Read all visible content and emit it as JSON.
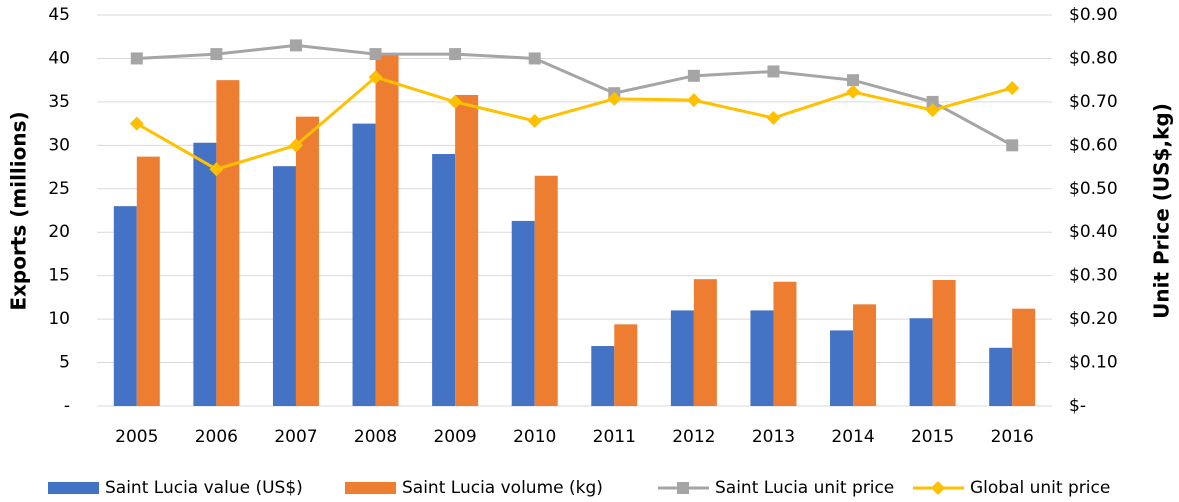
{
  "chart_data": {
    "type": "bar",
    "categories": [
      "2005",
      "2006",
      "2007",
      "2008",
      "2009",
      "2010",
      "2011",
      "2012",
      "2013",
      "2014",
      "2015",
      "2016"
    ],
    "series": [
      {
        "name": "Saint Lucia value (US$)",
        "color": "#4472c4",
        "type": "bar",
        "values": [
          23,
          30.3,
          27.6,
          32.5,
          29,
          21.3,
          6.9,
          11,
          11,
          8.7,
          10.1,
          6.7
        ]
      },
      {
        "name": "Saint Lucia volume (kg)",
        "color": "#ed7d31",
        "type": "bar",
        "values": [
          28.7,
          37.5,
          33.3,
          40.4,
          35.8,
          26.5,
          9.4,
          14.6,
          14.3,
          11.7,
          14.5,
          11.2
        ]
      },
      {
        "name": "Saint Lucia unit price",
        "color": "#a5a5a5",
        "type": "line",
        "marker": "square",
        "axis": "y2",
        "values": [
          0.8,
          0.81,
          0.83,
          0.81,
          0.81,
          0.8,
          0.72,
          0.76,
          0.77,
          0.75,
          0.7,
          0.6
        ]
      },
      {
        "name": "Global unit price",
        "color": "#ffc000",
        "type": "line",
        "marker": "diamond",
        "axis": "y2",
        "values": [
          0.65,
          0.545,
          0.6,
          0.757,
          0.7,
          0.656,
          0.707,
          0.704,
          0.663,
          0.723,
          0.681,
          0.732
        ]
      }
    ],
    "ylabel": "Exports (millions)",
    "y2label": "Unit Price (US$,kg)",
    "ylim": [
      0,
      45
    ],
    "yticks": [
      {
        "value": 0,
        "label": "-"
      },
      5,
      10,
      15,
      20,
      25,
      30,
      35,
      40,
      45
    ],
    "y2lim": [
      0,
      0.9
    ],
    "y2ticks": [
      {
        "value": 0,
        "label": "$-"
      },
      {
        "value": 0.1,
        "label": "$0.10"
      },
      {
        "value": 0.2,
        "label": "$0.20"
      },
      {
        "value": 0.3,
        "label": "$0.30"
      },
      {
        "value": 0.4,
        "label": "$0.40"
      },
      {
        "value": 0.5,
        "label": "$0.50"
      },
      {
        "value": 0.6,
        "label": "$0.60"
      },
      {
        "value": 0.7,
        "label": "$0.70"
      },
      {
        "value": 0.8,
        "label": "$0.80"
      },
      {
        "value": 0.9,
        "label": "$0.90"
      }
    ],
    "grid": true,
    "legend": "bottom"
  }
}
